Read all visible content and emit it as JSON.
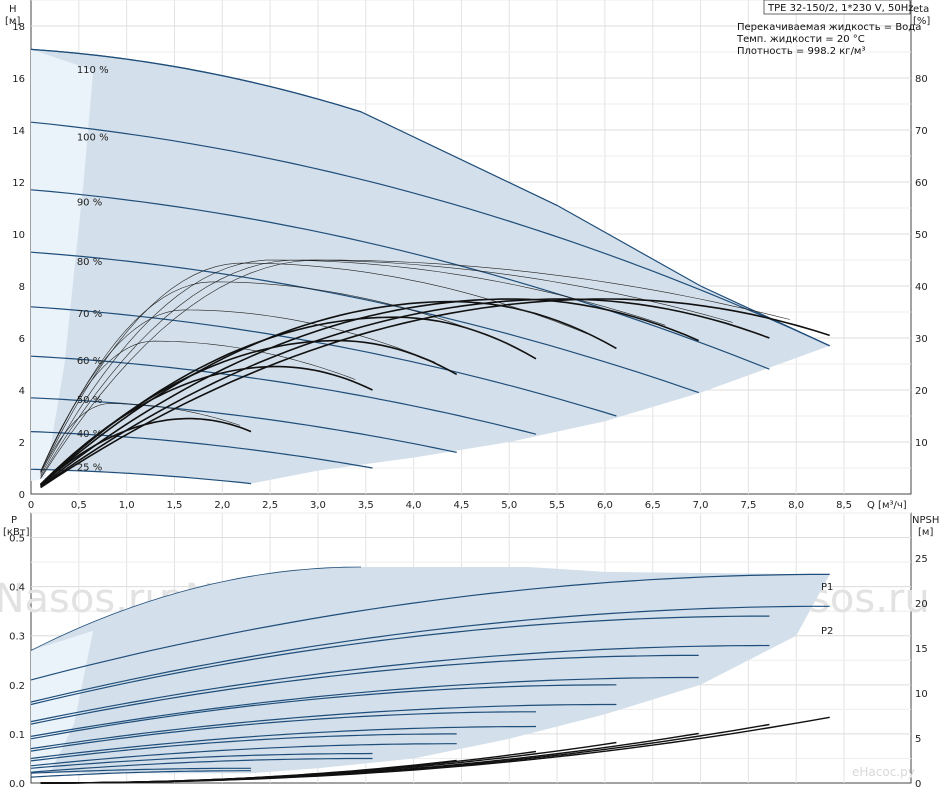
{
  "header": {
    "model": "TPE 32-150/2, 1*230 V, 50Hz",
    "eta_label": "eta",
    "eta_unit": "[%]",
    "info": [
      "Перекачиваемая жидкость = Вода",
      "Темп. жидкости = 20 °C",
      "Плотность = 998.2 кг/м³"
    ]
  },
  "watermark": "eNasos.ru",
  "corner_watermark": "eНасос.ру",
  "chart_data": [
    {
      "type": "line",
      "name": "head",
      "ylabel": "H",
      "yunit": "[м]",
      "xlabel": "Q [м³/ч]",
      "y2label": "eta",
      "y2unit": "[%]",
      "xlim": [
        0,
        9.2
      ],
      "ylim": [
        0,
        19
      ],
      "y2lim": [
        0,
        95
      ],
      "xticks": [
        "0",
        "0,5",
        "1,0",
        "1,5",
        "2,0",
        "2,5",
        "3,0",
        "3,5",
        "4,0",
        "4,5",
        "5,0",
        "5,5",
        "6,0",
        "6,5",
        "7,0",
        "7,5",
        "8,0",
        "8,5"
      ],
      "xtick_values": [
        0,
        0.5,
        1,
        1.5,
        2,
        2.5,
        3,
        3.5,
        4,
        4.5,
        5,
        5.5,
        6,
        6.5,
        7,
        7.5,
        8,
        8.5
      ],
      "yticks": [
        "0",
        "2",
        "4",
        "6",
        "8",
        "10",
        "12",
        "14",
        "16",
        "18"
      ],
      "y2ticks": [
        "10",
        "20",
        "30",
        "40",
        "50",
        "60",
        "70",
        "80"
      ],
      "grid": true,
      "series": [
        {
          "name": "110 %",
          "h0": 17.1,
          "qmax": 3.45,
          "hmax": 14.7,
          "label_at": [
            0.5,
            16.2
          ]
        },
        {
          "name": "100 %",
          "h0": 14.3,
          "qmax": 8.35,
          "hmax": 5.7,
          "label_at": [
            0.5,
            13.6
          ]
        },
        {
          "name": "90 %",
          "h0": 11.7,
          "qmax": 7.72,
          "hmax": 4.8,
          "label_at": [
            0.5,
            11.1
          ]
        },
        {
          "name": "80 %",
          "h0": 9.3,
          "qmax": 6.98,
          "hmax": 3.9,
          "label_at": [
            0.5,
            8.8
          ]
        },
        {
          "name": "70 %",
          "h0": 7.2,
          "qmax": 6.12,
          "hmax": 3.0,
          "label_at": [
            0.5,
            6.8
          ]
        },
        {
          "name": "60 %",
          "h0": 5.3,
          "qmax": 5.28,
          "hmax": 2.3,
          "label_at": [
            0.5,
            5.0
          ]
        },
        {
          "name": "50 %",
          "h0": 3.7,
          "qmax": 4.45,
          "hmax": 1.6,
          "label_at": [
            0.5,
            3.5
          ]
        },
        {
          "name": "40 %",
          "h0": 2.4,
          "qmax": 3.57,
          "hmax": 1.0,
          "label_at": [
            0.5,
            2.2
          ]
        },
        {
          "name": "25 %",
          "h0": 0.95,
          "qmax": 2.3,
          "hmax": 0.4,
          "label_at": [
            0.5,
            0.9
          ]
        }
      ],
      "eta_curves_qmax": [
        2.3,
        3.57,
        4.45,
        5.28,
        6.12,
        6.98,
        7.72,
        8.35
      ],
      "eta_peak_percent": [
        14.5,
        24.5,
        29.5,
        34,
        37,
        37.5,
        37.5,
        37.5
      ],
      "eta_end_percent": [
        12,
        20,
        23,
        26,
        28,
        29.5,
        30,
        30.5
      ]
    },
    {
      "type": "line",
      "name": "power",
      "ylabel": "P",
      "yunit": "[кВт]",
      "xlabel": "Q [м³/ч]",
      "y2label": "NPSH",
      "y2unit": "[м]",
      "xlim": [
        0,
        9.2
      ],
      "ylim": [
        0,
        0.55
      ],
      "y2lim": [
        0,
        30
      ],
      "yticks": [
        "0.0",
        "0.1",
        "0.2",
        "0.3",
        "0.4",
        "0.5"
      ],
      "y2ticks": [
        "0",
        "5",
        "10",
        "15",
        "20",
        "25"
      ],
      "grid": true,
      "legend": [
        "P1",
        "P2"
      ],
      "series": [
        {
          "name": "P1",
          "speeds": [
            {
              "p0": 0.27,
              "pmax": 0.44,
              "qend": 3.45
            },
            {
              "p0": 0.21,
              "pmax": 0.425,
              "qend": 8.35
            },
            {
              "p0": 0.16,
              "pmax": 0.34,
              "qend": 7.72
            },
            {
              "p0": 0.12,
              "pmax": 0.26,
              "qend": 6.98
            },
            {
              "p0": 0.09,
              "pmax": 0.2,
              "qend": 6.12
            },
            {
              "p0": 0.065,
              "pmax": 0.145,
              "qend": 5.28
            },
            {
              "p0": 0.045,
              "pmax": 0.1,
              "qend": 4.45
            },
            {
              "p0": 0.03,
              "pmax": 0.06,
              "qend": 3.57
            },
            {
              "p0": 0.02,
              "pmax": 0.03,
              "qend": 2.3
            }
          ]
        },
        {
          "name": "P2",
          "speeds": [
            {
              "p0": 0.165,
              "pmax": 0.36,
              "qend": 8.35
            },
            {
              "p0": 0.125,
              "pmax": 0.28,
              "qend": 7.72
            },
            {
              "p0": 0.095,
              "pmax": 0.215,
              "qend": 6.98
            },
            {
              "p0": 0.07,
              "pmax": 0.16,
              "qend": 6.12
            },
            {
              "p0": 0.05,
              "pmax": 0.115,
              "qend": 5.28
            },
            {
              "p0": 0.035,
              "pmax": 0.08,
              "qend": 4.45
            },
            {
              "p0": 0.022,
              "pmax": 0.05,
              "qend": 3.57
            },
            {
              "p0": 0.012,
              "pmax": 0.025,
              "qend": 2.3
            }
          ]
        }
      ],
      "npsh_qend": [
        3.57,
        4.45,
        5.28,
        6.12,
        6.98,
        7.72,
        8.35
      ],
      "npsh_end_m": [
        1.5,
        2.5,
        3.5,
        4.5,
        5.5,
        6.5,
        7.3
      ]
    }
  ]
}
